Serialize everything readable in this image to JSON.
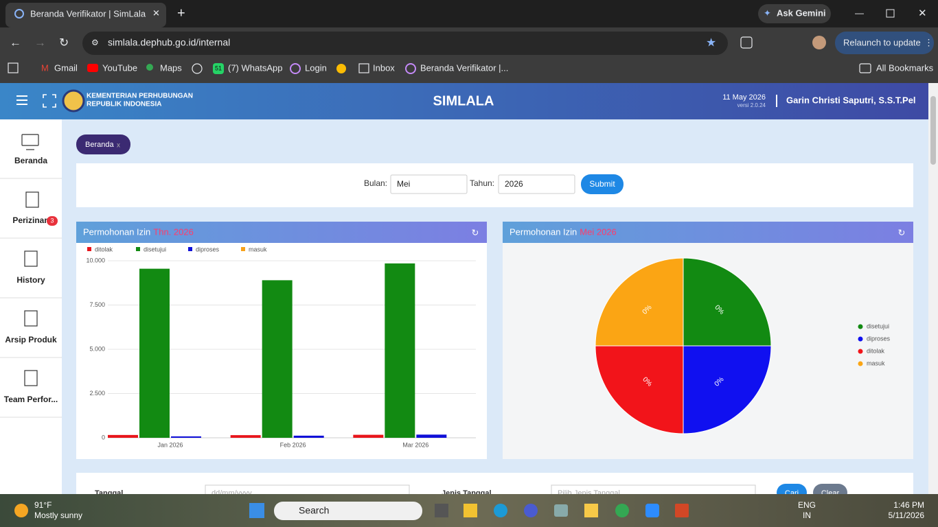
{
  "browser": {
    "tab_title": "Beranda Verifikator | SimLala",
    "ask_gemini": "Ask Gemini",
    "url": "simlala.dephub.go.id/internal",
    "relaunch": "Relaunch to update",
    "bookmarks": [
      "Gmail",
      "YouTube",
      "Maps",
      "(7) WhatsApp",
      "Login",
      "Inbox",
      "Beranda Verifikator |..."
    ],
    "whatsapp_badge": "51",
    "all_bookmarks": "All Bookmarks"
  },
  "header": {
    "org_line1": "KEMENTERIAN PERHUBUNGAN",
    "org_line2": "REPUBLIK INDONESIA",
    "title": "SIMLALA",
    "date": "11 May 2026",
    "version": "versi 2.0.24",
    "user": "Garin Christi Saputri, S.S.T.Pel"
  },
  "sidebar": [
    {
      "label": "Beranda"
    },
    {
      "label": "Perizinan",
      "badge": "3"
    },
    {
      "label": "History"
    },
    {
      "label": "Arsip Produk"
    },
    {
      "label": "Team Perfor..."
    }
  ],
  "breadcrumb": {
    "tab": "Beranda",
    "close": "x"
  },
  "filter": {
    "month_label": "Bulan:",
    "month": "Mei",
    "year_label": "Tahun:",
    "year": "2026",
    "submit": "Submit"
  },
  "chart_data": [
    {
      "type": "bar",
      "title": "Permohonan Izin",
      "period": "Thn. 2026",
      "categories": [
        "Jan 2026",
        "Feb 2026",
        "Mar 2026"
      ],
      "series": [
        {
          "name": "ditolak",
          "color": "#e8161c",
          "values": [
            160,
            150,
            170
          ]
        },
        {
          "name": "disetujui",
          "color": "#128a12",
          "values": [
            9550,
            8900,
            9850
          ]
        },
        {
          "name": "diproses",
          "color": "#1010d8",
          "values": [
            80,
            120,
            180
          ]
        },
        {
          "name": "masuk",
          "color": "#f7a21b",
          "values": [
            0,
            0,
            0
          ]
        }
      ],
      "ylim": [
        0,
        10000
      ],
      "yticks": [
        0,
        {
          "value": 2500,
          "label": "2.500"
        },
        {
          "value": 5000,
          "label": "5.000"
        },
        {
          "value": 7500,
          "label": "7.500"
        },
        {
          "value": 10000,
          "label": "10.000"
        }
      ],
      "grid": true,
      "legend": "top"
    },
    {
      "type": "pie",
      "title": "Permohonan Izin",
      "period": "Mei 2026",
      "categories": [
        "disetujui",
        "diproses",
        "ditolak",
        "masuk"
      ],
      "values": [
        0,
        0,
        0,
        0
      ],
      "value_labels": [
        "0%",
        "0%",
        "0%",
        "0%"
      ],
      "colors": [
        "#128a12",
        "#1010f0",
        "#f2141a",
        "#fba514"
      ],
      "legend": "right"
    }
  ],
  "search_form": {
    "date_label": "Tanggal",
    "date_placeholder": "dd/mm/yyyy",
    "type_label": "Jenis Tanggal",
    "type_placeholder": "Pilih Jenis Tanggal",
    "search": "Cari",
    "clear": "Clear"
  },
  "taskbar": {
    "temperature": "91°F",
    "weather": "Mostly sunny",
    "search": "Search",
    "language": "ENG",
    "region": "IN",
    "time": "1:46 PM",
    "date": "5/11/2026"
  }
}
